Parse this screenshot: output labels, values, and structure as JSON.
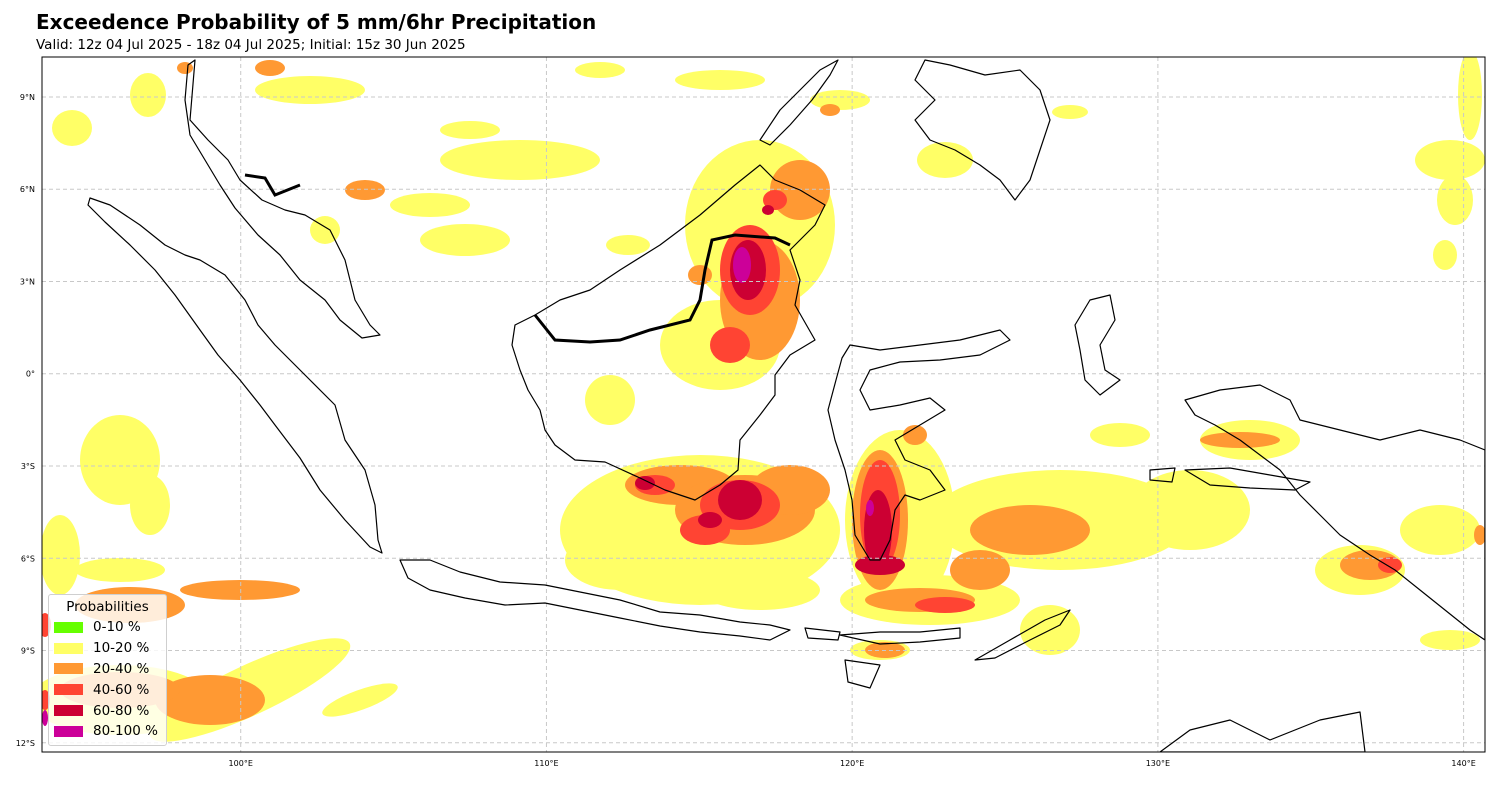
{
  "header": {
    "title": "Exceedence Probability of 5 mm/6hr Precipitation",
    "subtitle": "Valid: 12z 04 Jul 2025 - 18z 04 Jul 2025; Initial: 15z 30 Jun 2025"
  },
  "map": {
    "projection": "PlateCarree",
    "extent_lon": [
      93.5,
      140.7
    ],
    "extent_lat": [
      -12.3,
      10.3
    ],
    "gridlines": "dashed",
    "lat_ticks": [
      {
        "value": 9,
        "label": "9°N"
      },
      {
        "value": 6,
        "label": "6°N"
      },
      {
        "value": 3,
        "label": "3°N"
      },
      {
        "value": 0,
        "label": "0°"
      },
      {
        "value": -3,
        "label": "3°S"
      },
      {
        "value": -6,
        "label": "6°S"
      },
      {
        "value": -9,
        "label": "9°S"
      },
      {
        "value": -12,
        "label": "12°S"
      }
    ],
    "lon_ticks": [
      {
        "value": 100,
        "label": "100°E"
      },
      {
        "value": 110,
        "label": "110°E"
      },
      {
        "value": 120,
        "label": "120°E"
      },
      {
        "value": 130,
        "label": "130°E"
      },
      {
        "value": 140,
        "label": "140°E"
      }
    ]
  },
  "legend": {
    "title": "Probabilities",
    "placement": "lower-left",
    "items": [
      {
        "label": "0-10 %",
        "color": "#66ff00"
      },
      {
        "label": "10-20 %",
        "color": "#ffff66"
      },
      {
        "label": "20-40 %",
        "color": "#ff9933"
      },
      {
        "label": "40-60 %",
        "color": "#ff4433"
      },
      {
        "label": "60-80 %",
        "color": "#cc0033"
      },
      {
        "label": "80-100 %",
        "color": "#cc0099"
      }
    ]
  }
}
